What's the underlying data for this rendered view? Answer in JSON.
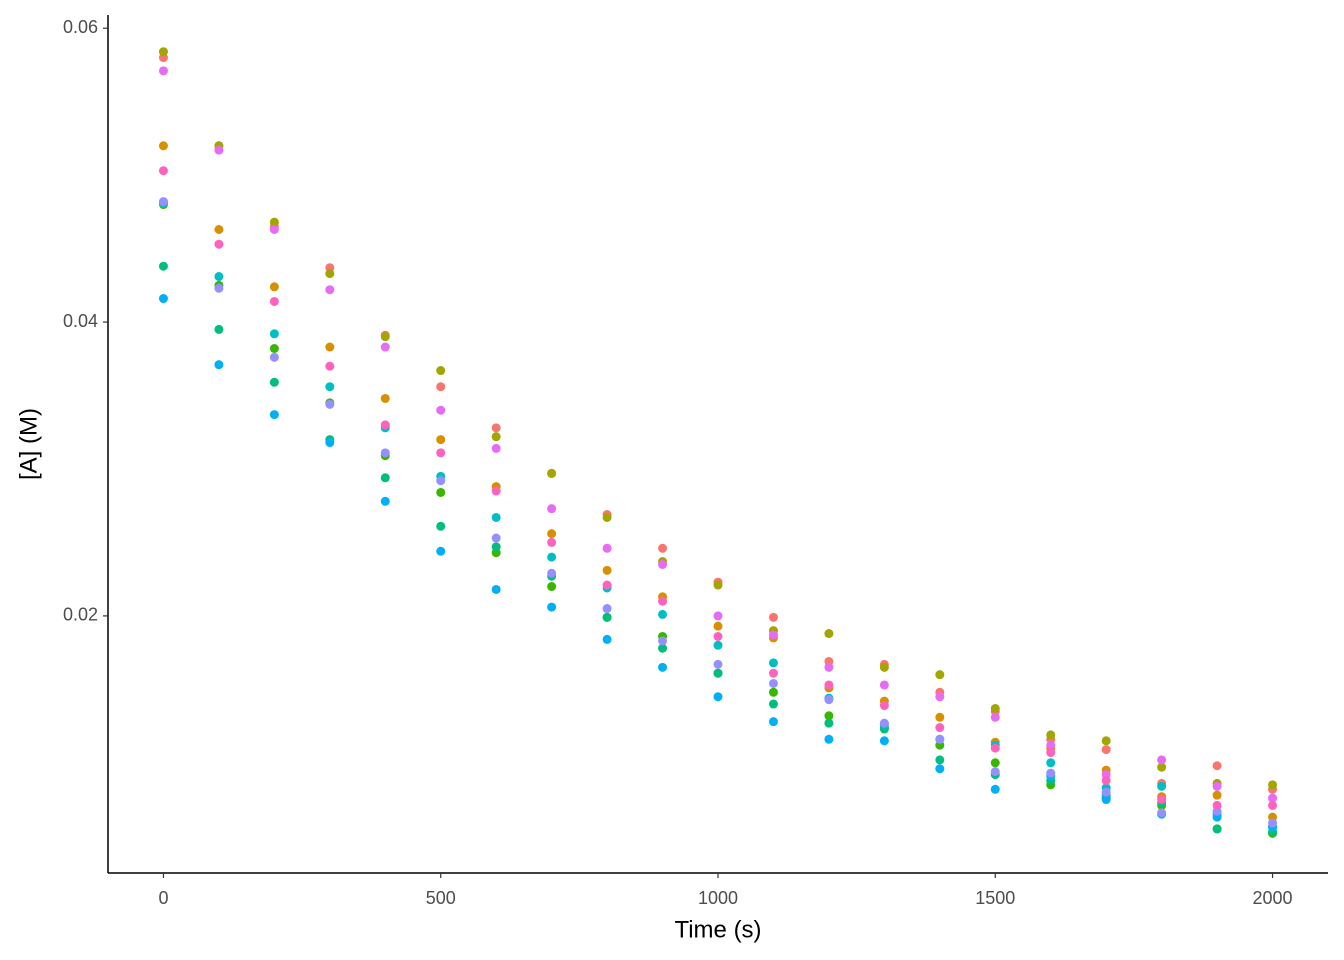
{
  "chart_data": {
    "type": "scatter",
    "x_label": "Time (s)",
    "y_label": "[A] (M)",
    "x": [
      0,
      100,
      200,
      300,
      400,
      500,
      600,
      700,
      800,
      900,
      1000,
      1100,
      1200,
      1300,
      1400,
      1500,
      1600,
      1700,
      1800,
      1900,
      2000
    ],
    "xlim": [
      -100,
      2100
    ],
    "xticks": [
      0,
      500,
      1000,
      1500,
      2000
    ],
    "ylim": [
      0.0025,
      0.0609
    ],
    "yticks": [
      0.02,
      0.04,
      0.06
    ],
    "grid": false,
    "series": [
      {
        "color": "#F8766D",
        "values": [
          0.058,
          0.052,
          0.0465,
          0.0437,
          0.0391,
          0.0356,
          0.0328,
          0.0297,
          0.0269,
          0.0246,
          0.0223,
          0.0199,
          0.0169,
          0.0167,
          0.0148,
          0.0135,
          0.0116,
          0.0109,
          0.0086,
          0.0098,
          0.0082
        ]
      },
      {
        "color": "#D89000",
        "values": [
          0.052,
          0.0463,
          0.0424,
          0.0383,
          0.0348,
          0.032,
          0.0288,
          0.0256,
          0.0231,
          0.0213,
          0.0193,
          0.0185,
          0.0151,
          0.0142,
          0.0131,
          0.0114,
          0.011,
          0.0095,
          0.0077,
          0.0078,
          0.0063
        ]
      },
      {
        "color": "#A3A500",
        "values": [
          0.0584,
          0.052,
          0.0468,
          0.0433,
          0.039,
          0.0367,
          0.0322,
          0.0297,
          0.0267,
          0.0237,
          0.0221,
          0.019,
          0.0188,
          0.0165,
          0.016,
          0.0137,
          0.0119,
          0.0115,
          0.0097,
          0.0086,
          0.0085
        ]
      },
      {
        "color": "#39B600",
        "values": [
          0.048,
          0.0425,
          0.0382,
          0.0345,
          0.0309,
          0.0284,
          0.0243,
          0.022,
          0.0199,
          0.0186,
          0.0161,
          0.0148,
          0.0132,
          0.0124,
          0.0112,
          0.01,
          0.0085,
          0.0076,
          0.0071,
          0.0055,
          0.0052
        ]
      },
      {
        "color": "#00BF7D",
        "values": [
          0.0438,
          0.0395,
          0.0359,
          0.032,
          0.0294,
          0.0261,
          0.0247,
          0.0227,
          0.0199,
          0.0178,
          0.0161,
          0.014,
          0.0127,
          0.0123,
          0.0102,
          0.0092,
          0.0088,
          0.0078,
          0.0073,
          0.0055,
          0.0053
        ]
      },
      {
        "color": "#00BFC4",
        "values": [
          0.0481,
          0.0431,
          0.0392,
          0.0356,
          0.0328,
          0.0295,
          0.0267,
          0.024,
          0.0219,
          0.0201,
          0.018,
          0.0168,
          0.0144,
          0.0126,
          0.0116,
          0.0112,
          0.01,
          0.0083,
          0.0084,
          0.0065,
          0.0056
        ]
      },
      {
        "color": "#00B0F6",
        "values": [
          0.0416,
          0.0371,
          0.0337,
          0.0318,
          0.0278,
          0.0244,
          0.0218,
          0.0206,
          0.0184,
          0.0165,
          0.0145,
          0.0128,
          0.0116,
          0.0115,
          0.0096,
          0.0082,
          0.0091,
          0.0075,
          0.0065,
          0.0063,
          0.0057
        ]
      },
      {
        "color": "#9590FF",
        "values": [
          0.0482,
          0.0423,
          0.0376,
          0.0344,
          0.0311,
          0.0292,
          0.0253,
          0.0229,
          0.0205,
          0.0183,
          0.0167,
          0.0154,
          0.0143,
          0.0127,
          0.0116,
          0.0094,
          0.0093,
          0.008,
          0.0066,
          0.0067,
          0.0059
        ]
      },
      {
        "color": "#E76BF3",
        "values": [
          0.0571,
          0.0517,
          0.0463,
          0.0422,
          0.0383,
          0.034,
          0.0314,
          0.0273,
          0.0246,
          0.0235,
          0.02,
          0.0187,
          0.0165,
          0.0153,
          0.0145,
          0.0131,
          0.0112,
          0.0092,
          0.0102,
          0.0084,
          0.0076
        ]
      },
      {
        "color": "#FF62BC",
        "values": [
          0.0503,
          0.0453,
          0.0414,
          0.037,
          0.033,
          0.0311,
          0.0285,
          0.025,
          0.0221,
          0.021,
          0.0186,
          0.0161,
          0.0153,
          0.0139,
          0.0124,
          0.011,
          0.0107,
          0.0088,
          0.0075,
          0.0071,
          0.0071
        ]
      }
    ]
  }
}
